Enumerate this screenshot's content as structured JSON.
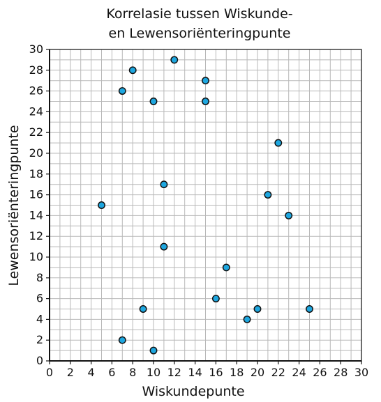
{
  "chart_data": {
    "type": "scatter",
    "title_lines": [
      "Korrelasie tussen Wiskunde-",
      "en Lewensoriënteringpunte"
    ],
    "xlabel": "Wiskundepunte",
    "ylabel": "Lewensoriënteringpunte",
    "xlim": [
      0,
      30
    ],
    "ylim": [
      0,
      30
    ],
    "xticks": [
      0,
      2,
      4,
      6,
      8,
      10,
      12,
      14,
      16,
      18,
      20,
      22,
      24,
      26,
      28,
      30
    ],
    "yticks": [
      0,
      2,
      4,
      6,
      8,
      10,
      12,
      14,
      16,
      18,
      20,
      22,
      24,
      26,
      28,
      30
    ],
    "grid": true,
    "x": [
      5,
      7,
      7,
      8,
      9,
      10,
      10,
      11,
      11,
      12,
      15,
      15,
      16,
      17,
      19,
      20,
      21,
      22,
      23,
      25
    ],
    "y": [
      15,
      2,
      26,
      28,
      5,
      1,
      25,
      11,
      17,
      29,
      25,
      27,
      6,
      9,
      4,
      5,
      16,
      21,
      14,
      5
    ],
    "marker_color": "#1ea7e0",
    "marker_edge_color": "#111111",
    "grid_color": "#b8b8b8"
  }
}
